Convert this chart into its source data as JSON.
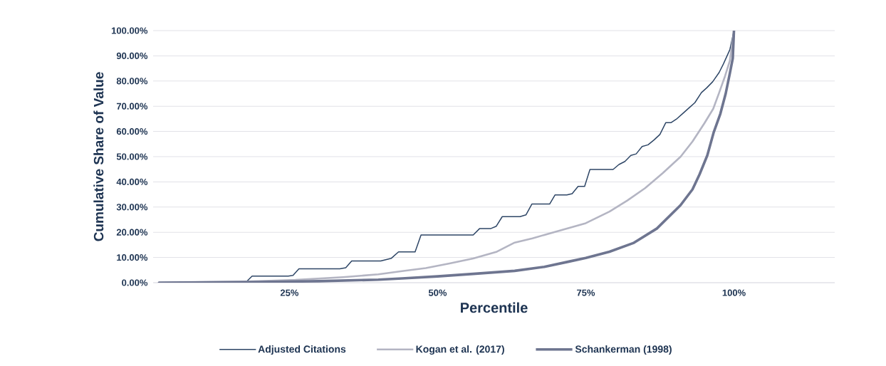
{
  "chart_data": {
    "type": "line",
    "xlabel": "Percentile",
    "ylabel": "Cumulative Share of Value",
    "xlim": [
      2,
      117
    ],
    "ylim": [
      0,
      100
    ],
    "xticks": [
      {
        "value": 25,
        "label": "25%"
      },
      {
        "value": 50,
        "label": "50%"
      },
      {
        "value": 75,
        "label": "75%"
      },
      {
        "value": 100,
        "label": "100%"
      }
    ],
    "yticks": [
      {
        "value": 0,
        "label": "0.00%"
      },
      {
        "value": 10,
        "label": "10.00%"
      },
      {
        "value": 20,
        "label": "20.00%"
      },
      {
        "value": 30,
        "label": "30.00%"
      },
      {
        "value": 40,
        "label": "40.00%"
      },
      {
        "value": 50,
        "label": "50.00%"
      },
      {
        "value": 60,
        "label": "60.00%"
      },
      {
        "value": 70,
        "label": "70.00%"
      },
      {
        "value": 80,
        "label": "80.00%"
      },
      {
        "value": 90,
        "label": "90.00%"
      },
      {
        "value": 100,
        "label": "100.00%"
      }
    ],
    "grid": "y",
    "legend": "bottom",
    "marker": "none",
    "line_style": "solid",
    "series": [
      {
        "name": "Adjusted Citations",
        "color": "#2e4666",
        "x": [
          3,
          17.7,
          18.7,
          24.8,
          25.6,
          26.6,
          33.5,
          34.5,
          35.5,
          40.4,
          42.2,
          43.4,
          46.2,
          47.2,
          56.0,
          57.1,
          59.0,
          59.9,
          60.9,
          63.9,
          64.9,
          65.9,
          68.9,
          69.8,
          71.8,
          72.7,
          73.7,
          74.8,
          75.7,
          79.6,
          80.6,
          81.6,
          82.6,
          83.5,
          84.5,
          85.5,
          86.5,
          87.5,
          88.5,
          89.4,
          90.4,
          91.5,
          92.4,
          93.4,
          94.5,
          95.4,
          96.4,
          97.5,
          98.2,
          99.3,
          100
        ],
        "values": [
          0,
          0.3,
          2.6,
          2.6,
          2.9,
          5.5,
          5.5,
          5.9,
          8.6,
          8.6,
          9.7,
          12.2,
          12.2,
          18.9,
          18.9,
          21.5,
          21.5,
          22.4,
          26.2,
          26.2,
          26.9,
          31.2,
          31.2,
          34.8,
          34.8,
          35.3,
          38.2,
          38.2,
          44.9,
          44.9,
          46.9,
          48.1,
          50.5,
          51.1,
          54.0,
          54.7,
          56.6,
          58.8,
          63.5,
          63.5,
          65.1,
          67.4,
          69.3,
          71.4,
          75.4,
          77.3,
          79.7,
          83.4,
          86.7,
          92.4,
          100
        ]
      },
      {
        "name": "Kogan et al. (2017)",
        "color": "#b4b5c3",
        "x": [
          3,
          18,
          26,
          34,
          40,
          44,
          48,
          52,
          56,
          60,
          63,
          66,
          70,
          75,
          79,
          82,
          85,
          88,
          91,
          93,
          95,
          96.5,
          97.5,
          98.5,
          99.3,
          100
        ],
        "values": [
          0,
          0.5,
          1.1,
          2.2,
          3.3,
          4.6,
          5.8,
          7.6,
          9.6,
          12.3,
          15.9,
          17.6,
          20.3,
          23.6,
          28.2,
          32.6,
          37.5,
          43.5,
          50,
          56,
          63.2,
          69,
          75.4,
          82,
          88,
          100
        ]
      },
      {
        "name": "Schankerman (1998)",
        "color": "#6e7590",
        "x": [
          3,
          20,
          30,
          40,
          44,
          50,
          56,
          63,
          68,
          72,
          75,
          79,
          83,
          87,
          91,
          93,
          94.2,
          95.5,
          96.6,
          97.7,
          98.6,
          99.3,
          99.8,
          100
        ],
        "values": [
          0,
          0.3,
          0.6,
          1.2,
          1.7,
          2.5,
          3.5,
          4.7,
          6.3,
          8.3,
          9.8,
          12.3,
          15.7,
          21.5,
          30.8,
          37,
          43,
          50.5,
          59.8,
          67,
          75,
          83,
          89,
          100
        ]
      }
    ]
  }
}
